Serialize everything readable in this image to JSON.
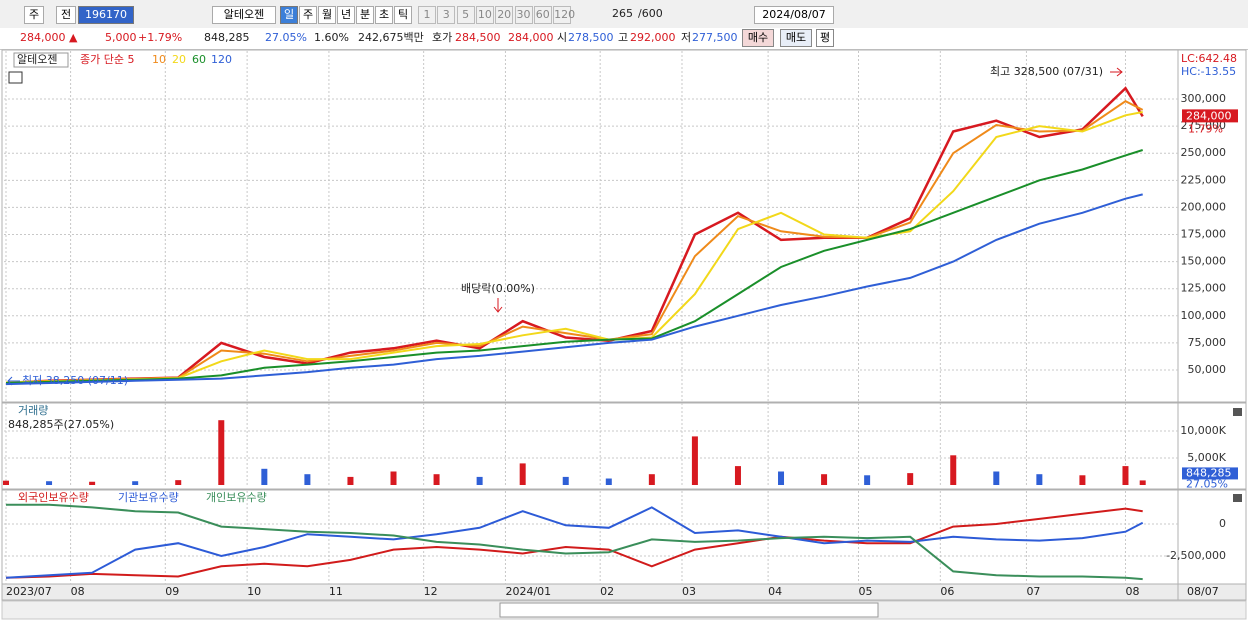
{
  "toolbar": {
    "market": "주",
    "prev": "전",
    "code": "196170",
    "name": "알테오젠",
    "periods": [
      "일",
      "주",
      "월",
      "년",
      "분",
      "초",
      "틱"
    ],
    "intervals": [
      "1",
      "3",
      "5",
      "10",
      "20",
      "30",
      "60",
      "120"
    ],
    "count": "265",
    "max": "/600",
    "date": "2024/08/07"
  },
  "quote": {
    "price": "284,000 ▲",
    "change": "5,000",
    "rate": "+1.79%",
    "volume": "848,285",
    "turnover": "27.05%",
    "ratio": "1.60%",
    "amount": "242,675백만",
    "ask_label": "호가",
    "ask": "284,500",
    "bid": "284,000",
    "open_label": "시",
    "open": "278,500",
    "high_label": "고",
    "high": "292,000",
    "low_label": "저",
    "low": "277,500",
    "buy": "매수",
    "sell": "매도",
    "avg": "평"
  },
  "chart_data": [
    {
      "type": "line",
      "title": "알테오젠",
      "x": [
        0,
        10,
        20,
        30,
        40,
        50,
        60,
        70,
        80,
        90,
        100,
        110,
        120,
        130,
        140,
        150,
        160,
        170,
        180,
        190,
        200,
        210,
        220,
        230,
        240,
        250,
        260,
        264
      ],
      "xlim": [
        0,
        265
      ],
      "xticks": [
        {
          "value": 0,
          "label": "2023/07"
        },
        {
          "value": 15,
          "label": "08"
        },
        {
          "value": 37,
          "label": "09"
        },
        {
          "value": 56,
          "label": "10"
        },
        {
          "value": 75,
          "label": "11"
        },
        {
          "value": 97,
          "label": "12"
        },
        {
          "value": 116,
          "label": "2024/01"
        },
        {
          "value": 138,
          "label": "02"
        },
        {
          "value": 157,
          "label": "03"
        },
        {
          "value": 177,
          "label": "04"
        },
        {
          "value": 198,
          "label": "05"
        },
        {
          "value": 217,
          "label": "06"
        },
        {
          "value": 237,
          "label": "07"
        },
        {
          "value": 260,
          "label": "08"
        }
      ],
      "x_end_label": "08/07",
      "ylim": [
        22300,
        343400
      ],
      "yticks": [
        {
          "value": 50000,
          "label": "50,000"
        },
        {
          "value": 75000,
          "label": "75,000"
        },
        {
          "value": 100000,
          "label": "100,000"
        },
        {
          "value": 125000,
          "label": "125,000"
        },
        {
          "value": 150000,
          "label": "150,000"
        },
        {
          "value": 175000,
          "label": "175,000"
        },
        {
          "value": 200000,
          "label": "200,000"
        },
        {
          "value": 225000,
          "label": "225,000"
        },
        {
          "value": 250000,
          "label": "250,000"
        },
        {
          "value": 275000,
          "label": "275,000"
        },
        {
          "value": 300000,
          "label": "300,000"
        }
      ],
      "grid": true,
      "series": [
        {
          "name": "종가 단순 5",
          "color": "#d71920",
          "values": [
            38000,
            40000,
            41000,
            42000,
            43000,
            75000,
            62000,
            56000,
            66000,
            70000,
            77000,
            70000,
            95000,
            80000,
            77000,
            86000,
            175000,
            195000,
            170000,
            172000,
            172000,
            190000,
            270000,
            280000,
            265000,
            272000,
            310000,
            284000
          ]
        },
        {
          "name": "10",
          "color": "#ef8a1a",
          "values": [
            38200,
            39800,
            40800,
            41800,
            42800,
            68000,
            65000,
            58000,
            63000,
            68000,
            75000,
            72000,
            90000,
            84000,
            78000,
            83000,
            155000,
            192000,
            178000,
            173000,
            172000,
            186000,
            250000,
            276000,
            270000,
            271000,
            298000,
            290000
          ]
        },
        {
          "name": "20",
          "color": "#f2d81a",
          "values": [
            38500,
            39500,
            40500,
            41500,
            42500,
            58000,
            68000,
            60000,
            60000,
            66000,
            72000,
            74000,
            82000,
            88000,
            78000,
            80000,
            120000,
            180000,
            195000,
            175000,
            172000,
            178000,
            215000,
            265000,
            275000,
            270000,
            285000,
            288000
          ]
        },
        {
          "name": "60",
          "color": "#1a8f2a",
          "values": [
            38000,
            39000,
            40000,
            41000,
            42000,
            45000,
            52000,
            55000,
            58000,
            62000,
            66000,
            68000,
            72000,
            76000,
            78000,
            79000,
            95000,
            120000,
            145000,
            160000,
            170000,
            180000,
            195000,
            210000,
            225000,
            235000,
            248000,
            253000
          ]
        },
        {
          "name": "120",
          "color": "#2f5fd6",
          "values": [
            37000,
            38000,
            39000,
            40000,
            41000,
            42000,
            45000,
            48000,
            52000,
            55000,
            60000,
            63000,
            67000,
            71000,
            75000,
            78000,
            90000,
            100000,
            110000,
            118000,
            127000,
            135000,
            150000,
            170000,
            185000,
            195000,
            208000,
            212000
          ]
        }
      ],
      "annotations": [
        "최고 328,500 (07/31)",
        "배당락(0.00%)",
        "최저 38,250 (07/11)"
      ],
      "right_labels": [
        "LC:642.48",
        "HC:-13.55"
      ],
      "price_box": [
        "284,000",
        "1.79%"
      ]
    },
    {
      "type": "bar",
      "title": "거래량",
      "subtitle": "848,285주(27.05%)",
      "x": [
        0,
        10,
        20,
        30,
        40,
        50,
        60,
        70,
        80,
        90,
        100,
        110,
        120,
        130,
        140,
        150,
        160,
        170,
        180,
        190,
        200,
        210,
        220,
        230,
        240,
        250,
        260,
        264
      ],
      "values": [
        800000,
        700000,
        600000,
        700000,
        900000,
        12000000,
        3000000,
        2000000,
        1500000,
        2500000,
        2000000,
        1500000,
        4000000,
        1500000,
        1200000,
        2000000,
        9000000,
        3500000,
        2500000,
        2000000,
        1800000,
        2200000,
        5500000,
        2500000,
        2000000,
        1800000,
        3500000,
        848285
      ],
      "colors": [
        "#d71920",
        "#2f5fd6",
        "#d71920",
        "#2f5fd6",
        "#d71920",
        "#d71920",
        "#2f5fd6",
        "#2f5fd6",
        "#d71920",
        "#d71920",
        "#d71920",
        "#2f5fd6",
        "#d71920",
        "#2f5fd6",
        "#2f5fd6",
        "#d71920",
        "#d71920",
        "#d71920",
        "#2f5fd6",
        "#d71920",
        "#2f5fd6",
        "#d71920",
        "#d71920",
        "#2f5fd6",
        "#2f5fd6",
        "#d71920",
        "#d71920",
        "#d71920"
      ],
      "ylim": [
        0,
        15000000
      ],
      "yticks": [
        {
          "value": 5000000,
          "label": "5,000K"
        },
        {
          "value": 10000000,
          "label": "10,000K"
        }
      ],
      "current_labels": [
        "848,285",
        "27.05%"
      ]
    },
    {
      "type": "line",
      "x": [
        0,
        10,
        20,
        30,
        40,
        50,
        60,
        70,
        80,
        90,
        100,
        110,
        120,
        130,
        140,
        150,
        160,
        170,
        180,
        190,
        200,
        210,
        220,
        230,
        240,
        250,
        260,
        264
      ],
      "ylim": [
        -4530000,
        2500000
      ],
      "yticks": [
        {
          "value": -2500000,
          "label": "-2,500,000"
        },
        0
      ],
      "series": [
        {
          "name": "외국인보유수량",
          "color": "#d11b1b",
          "values": [
            -4200000,
            -4100000,
            -3900000,
            -4000000,
            -4100000,
            -3300000,
            -3100000,
            -3300000,
            -2800000,
            -2000000,
            -1800000,
            -2000000,
            -2300000,
            -1800000,
            -2000000,
            -3300000,
            -2000000,
            -1500000,
            -1000000,
            -1300000,
            -1500000,
            -1500000,
            -200000,
            0,
            400000,
            800000,
            1200000,
            1000000
          ]
        },
        {
          "name": "기관보유수량",
          "color": "#2d5bd7",
          "values": [
            -4200000,
            -4000000,
            -3800000,
            -2000000,
            -1500000,
            -2500000,
            -1800000,
            -800000,
            -1000000,
            -1200000,
            -800000,
            -300000,
            1000000,
            -100000,
            -300000,
            1300000,
            -700000,
            -500000,
            -1000000,
            -1500000,
            -1300000,
            -1400000,
            -1000000,
            -1200000,
            -1300000,
            -1100000,
            -600000,
            100000
          ]
        },
        {
          "name": "개인보유수량",
          "color": "#3a8e5a",
          "values": [
            1500000,
            1500000,
            1300000,
            1000000,
            900000,
            -200000,
            -400000,
            -600000,
            -700000,
            -900000,
            -1400000,
            -1600000,
            -2000000,
            -2300000,
            -2200000,
            -1200000,
            -1400000,
            -1300000,
            -1100000,
            -1000000,
            -1100000,
            -1000000,
            -3700000,
            -4000000,
            -4100000,
            -4100000,
            -4200000,
            -4300000
          ]
        }
      ]
    }
  ]
}
